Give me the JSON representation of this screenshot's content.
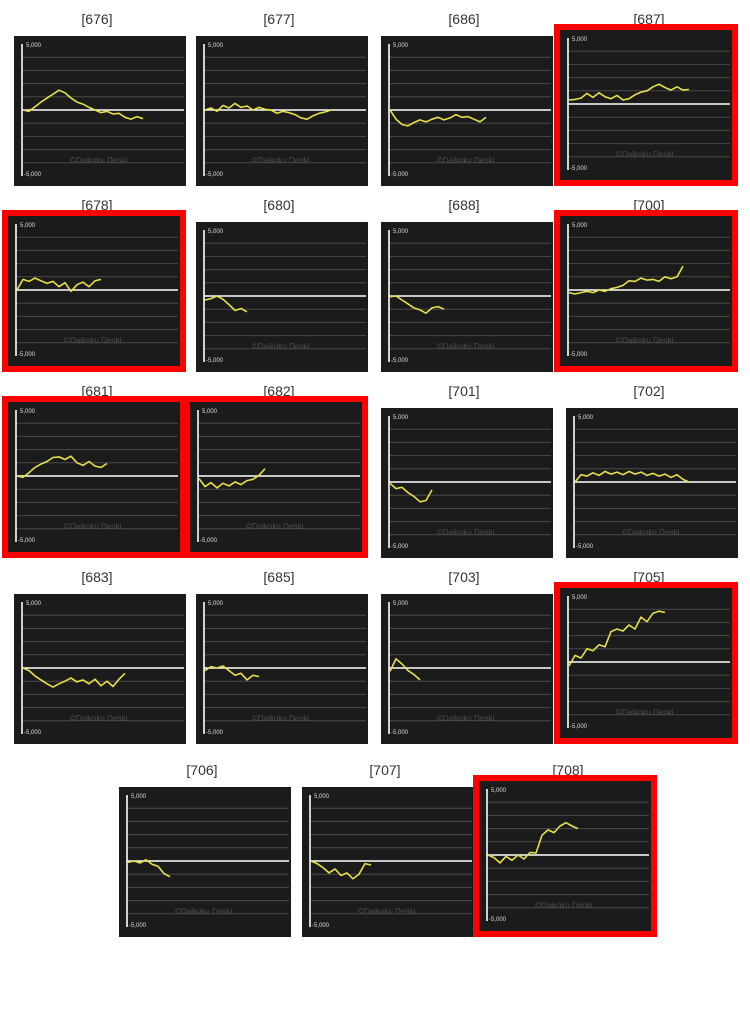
{
  "colors": {
    "panel": "#1b1b1b",
    "grid": "#4a4a4a",
    "axis": "#ffffff",
    "zero_line": "#ffffff",
    "series": "#e8e04a",
    "highlight": "#ff0000",
    "watermark": "#4e4e4e"
  },
  "chart_data": [
    {
      "type": "line",
      "title": "[676]",
      "highlighted": false,
      "ylim": [
        -5000,
        5000
      ],
      "ytick_top": "5,000",
      "ytick_bottom": "-5,000",
      "watermark": "©Daikoku Denki",
      "values": [
        0,
        -100,
        250,
        600,
        900,
        1200,
        1500,
        1300,
        900,
        600,
        450,
        200,
        0,
        -200,
        -100,
        -300,
        -250,
        -550,
        -700,
        -500,
        -650
      ]
    },
    {
      "type": "line",
      "title": "[677]",
      "highlighted": false,
      "ylim": [
        -5000,
        5000
      ],
      "ytick_top": "5,000",
      "ytick_bottom": "-5,000",
      "watermark": "©Daikoku Denki",
      "values": [
        0,
        150,
        -100,
        350,
        150,
        500,
        200,
        300,
        0,
        200,
        50,
        0,
        -250,
        -100,
        -200,
        -350,
        -600,
        -700,
        -450,
        -250,
        -150,
        0
      ]
    },
    {
      "type": "line",
      "title": "[686]",
      "highlighted": false,
      "ylim": [
        -5000,
        5000
      ],
      "ytick_top": "5,000",
      "ytick_bottom": "-5,000",
      "watermark": "©Daikoku Denki",
      "values": [
        0,
        -700,
        -1100,
        -1200,
        -950,
        -750,
        -900,
        -700,
        -550,
        -750,
        -600,
        -350,
        -550,
        -500,
        -700,
        -900,
        -550
      ]
    },
    {
      "type": "line",
      "title": "[687]",
      "highlighted": true,
      "ylim": [
        -5000,
        5000
      ],
      "ytick_top": "5,000",
      "ytick_bottom": "-5,000",
      "watermark": "©Daikoku Denki",
      "values": [
        300,
        350,
        450,
        800,
        500,
        850,
        550,
        400,
        650,
        300,
        400,
        700,
        900,
        1000,
        1300,
        1500,
        1250,
        1050,
        1300,
        1050,
        1100
      ]
    },
    {
      "type": "line",
      "title": "[678]",
      "highlighted": true,
      "ylim": [
        -5000,
        5000
      ],
      "ytick_top": "5,000",
      "ytick_bottom": "-5,000",
      "watermark": "©Daikoku Denki",
      "values": [
        0,
        800,
        650,
        900,
        700,
        500,
        650,
        250,
        550,
        -100,
        400,
        600,
        250,
        700,
        800
      ]
    },
    {
      "type": "line",
      "title": "[680]",
      "highlighted": false,
      "ylim": [
        -5000,
        5000
      ],
      "ytick_top": "5,000",
      "ytick_bottom": "-5,000",
      "watermark": "©Daikoku Denki",
      "values": [
        -300,
        -200,
        0,
        -250,
        -650,
        -1100,
        -950,
        -1200
      ]
    },
    {
      "type": "line",
      "title": "[688]",
      "highlighted": false,
      "ylim": [
        -5000,
        5000
      ],
      "ytick_top": "5,000",
      "ytick_bottom": "-5,000",
      "watermark": "©Daikoku Denki",
      "values": [
        -50,
        0,
        -300,
        -600,
        -900,
        -1050,
        -1300,
        -900,
        -800,
        -1000
      ]
    },
    {
      "type": "line",
      "title": "[700]",
      "highlighted": true,
      "ylim": [
        -5000,
        5000
      ],
      "ytick_top": "5,000",
      "ytick_bottom": "-5,000",
      "watermark": "©Daikoku Denki",
      "values": [
        -200,
        -300,
        -200,
        -100,
        -200,
        0,
        -100,
        100,
        200,
        350,
        700,
        650,
        900,
        750,
        800,
        650,
        1000,
        850,
        1000,
        1800
      ]
    },
    {
      "type": "line",
      "title": "[681]",
      "highlighted": true,
      "ylim": [
        -5000,
        5000
      ],
      "ytick_top": "5,000",
      "ytick_bottom": "-5,000",
      "watermark": "©Daikoku Denki",
      "values": [
        0,
        -100,
        250,
        650,
        900,
        1100,
        1400,
        1450,
        1250,
        1500,
        1000,
        800,
        1100,
        750,
        650,
        950
      ]
    },
    {
      "type": "line",
      "title": "[682]",
      "highlighted": true,
      "ylim": [
        -5000,
        5000
      ],
      "ytick_top": "5,000",
      "ytick_bottom": "-5,000",
      "watermark": "©Daikoku Denki",
      "values": [
        -200,
        -800,
        -500,
        -900,
        -550,
        -750,
        -450,
        -650,
        -350,
        -250,
        50,
        550
      ]
    },
    {
      "type": "line",
      "title": "[701]",
      "highlighted": false,
      "ylim": [
        -5000,
        5000
      ],
      "ytick_top": "5,000",
      "ytick_bottom": "-5,000",
      "watermark": "©Daikoku Denki",
      "values": [
        -100,
        -500,
        -400,
        -800,
        -1100,
        -1500,
        -1400,
        -600
      ]
    },
    {
      "type": "line",
      "title": "[702]",
      "highlighted": false,
      "ylim": [
        -5000,
        5000
      ],
      "ytick_top": "5,000",
      "ytick_bottom": "-5,000",
      "watermark": "©Daikoku Denki",
      "values": [
        0,
        550,
        450,
        700,
        500,
        800,
        600,
        750,
        550,
        800,
        600,
        750,
        500,
        650,
        450,
        600,
        350,
        550,
        200,
        0
      ]
    },
    {
      "type": "line",
      "title": "[683]",
      "highlighted": false,
      "ylim": [
        -5000,
        5000
      ],
      "ytick_top": "5,000",
      "ytick_bottom": "-5,000",
      "watermark": "©Daikoku Denki",
      "values": [
        0,
        -200,
        -600,
        -900,
        -1200,
        -1450,
        -1200,
        -1000,
        -750,
        -1050,
        -900,
        -1200,
        -850,
        -1350,
        -1000,
        -1400,
        -850,
        -400
      ]
    },
    {
      "type": "line",
      "title": "[685]",
      "highlighted": false,
      "ylim": [
        -5000,
        5000
      ],
      "ytick_top": "5,000",
      "ytick_bottom": "-5,000",
      "watermark": "©Daikoku Denki",
      "values": [
        -200,
        100,
        0,
        150,
        -200,
        -550,
        -400,
        -900,
        -550,
        -650
      ]
    },
    {
      "type": "line",
      "title": "[703]",
      "highlighted": false,
      "ylim": [
        -5000,
        5000
      ],
      "ytick_top": "5,000",
      "ytick_bottom": "-5,000",
      "watermark": "©Daikoku Denki",
      "values": [
        -250,
        700,
        300,
        -200,
        -500,
        -900
      ]
    },
    {
      "type": "line",
      "title": "[705]",
      "highlighted": true,
      "ylim": [
        -5000,
        5000
      ],
      "ytick_top": "5,000",
      "ytick_bottom": "-5,000",
      "watermark": "©Daikoku Denki",
      "values": [
        -300,
        500,
        300,
        1000,
        850,
        1300,
        1150,
        2300,
        2500,
        2350,
        2800,
        2500,
        3400,
        3050,
        3700,
        3850,
        3750
      ]
    },
    {
      "type": "line",
      "title": "[706]",
      "highlighted": false,
      "ylim": [
        -5000,
        5000
      ],
      "ytick_top": "5,000",
      "ytick_bottom": "-5,000",
      "watermark": "©Daikoku Denki",
      "values": [
        -100,
        0,
        -150,
        100,
        -250,
        -400,
        -950,
        -1200
      ]
    },
    {
      "type": "line",
      "title": "[707]",
      "highlighted": false,
      "ylim": [
        -5000,
        5000
      ],
      "ytick_top": "5,000",
      "ytick_bottom": "-5,000",
      "watermark": "©Daikoku Denki",
      "values": [
        0,
        -200,
        -500,
        -900,
        -600,
        -1100,
        -900,
        -1350,
        -1000,
        -200,
        -300
      ]
    },
    {
      "type": "line",
      "title": "[708]",
      "highlighted": true,
      "ylim": [
        -5000,
        5000
      ],
      "ytick_top": "5,000",
      "ytick_bottom": "-5,000",
      "watermark": "©Daikoku Denki",
      "values": [
        0,
        -200,
        -600,
        -100,
        -400,
        0,
        -300,
        200,
        150,
        1500,
        1900,
        1700,
        2200,
        2450,
        2200,
        2000
      ]
    }
  ]
}
